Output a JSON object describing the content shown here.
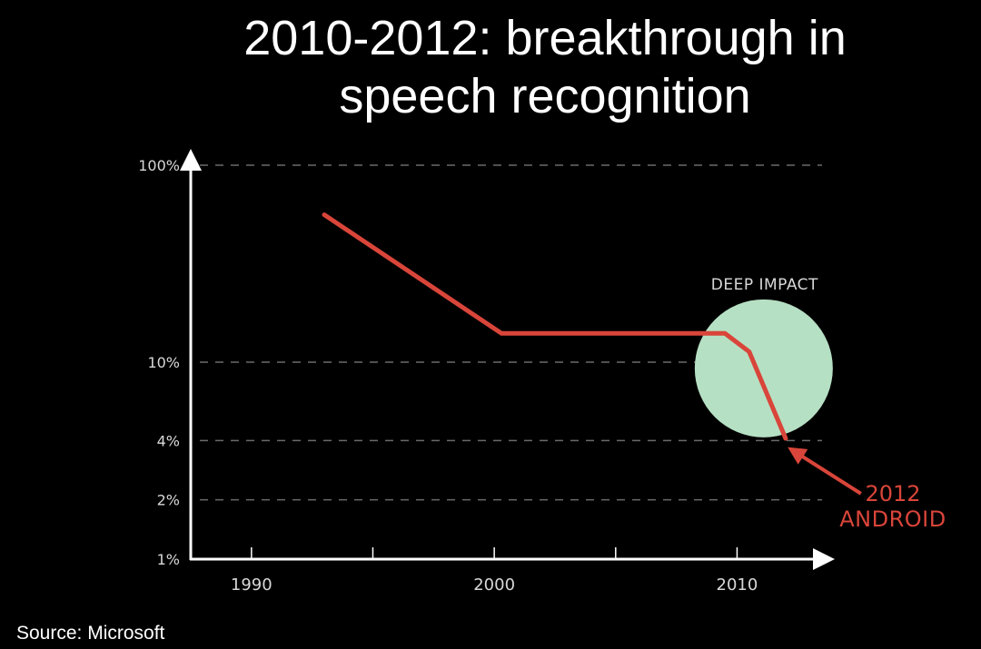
{
  "title_lines": [
    "2010-2012: breakthrough in",
    "speech recognition"
  ],
  "source": "Source: Microsoft",
  "colors": {
    "background": "#000000",
    "axis": "#ffffff",
    "grid": "#6a6a6a",
    "tick_label": "#d8d8d8",
    "line": "#d9453a",
    "circle": "#b6e0c4",
    "annotation": "#d9453a"
  },
  "chart_data": {
    "type": "line",
    "title": "2010-2012: breakthrough in speech recognition",
    "x_ticks": [
      1990,
      2000,
      2010
    ],
    "x_tick_labels": [
      "1990",
      "2000",
      "2010"
    ],
    "y_scale": "log",
    "y_ticks": [
      100,
      10,
      4,
      2,
      1
    ],
    "y_tick_labels": [
      "100%",
      "10%",
      "4%",
      "2%",
      "1%"
    ],
    "grid_y_values": [
      100,
      10,
      4,
      2
    ],
    "xlim": [
      1987.5,
      2013.5
    ],
    "ylim": [
      1,
      100
    ],
    "series": [
      {
        "x": [
          1993,
          2000.3,
          2009.5,
          2010.5,
          2012
        ],
        "y": [
          56,
          14,
          14,
          11.3,
          4.1
        ]
      }
    ],
    "annotations": [
      {
        "type": "circle",
        "label": "DEEP IMPACT",
        "center": [
          2011.1,
          9.3
        ]
      },
      {
        "type": "arrow",
        "label_lines": [
          "2012",
          "ANDROID"
        ],
        "from": [
          2015.1,
          2.15
        ],
        "to": [
          2012.4,
          3.5
        ]
      }
    ]
  }
}
